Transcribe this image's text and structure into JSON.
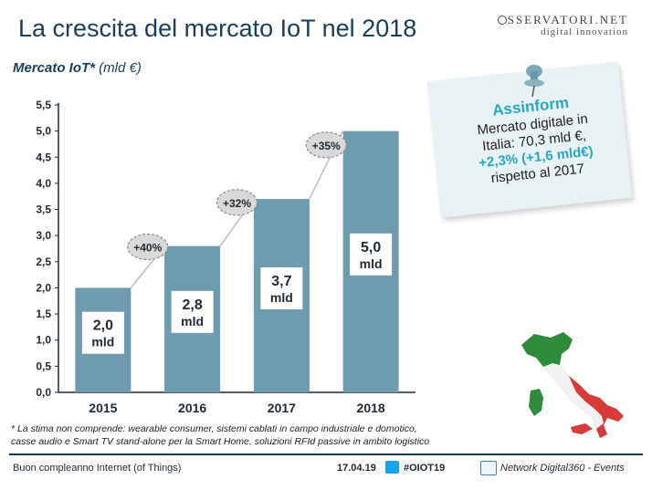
{
  "header": {
    "title": "La crescita del mercato IoT nel 2018",
    "logo_line1": "SSERVATORI.NET",
    "logo_line2": "digital innovation"
  },
  "subtitle": {
    "bold": "Mercato IoT*",
    "unit": " (mld €)"
  },
  "chart_data": {
    "type": "bar",
    "categories": [
      "2015",
      "2016",
      "2017",
      "2018"
    ],
    "values": [
      2.0,
      2.8,
      3.7,
      5.0
    ],
    "value_labels": [
      "2,0\nmld",
      "2,8\nmld",
      "3,7\nmld",
      "5,0\nmld"
    ],
    "growth_labels": [
      "+40%",
      "+32%",
      "+35%"
    ],
    "title": "",
    "xlabel": "",
    "ylabel": "",
    "ylim": [
      0,
      5.5
    ],
    "yticks": [
      "0,0",
      "0,5",
      "1,0",
      "1,5",
      "2,0",
      "2,5",
      "3,0",
      "3,5",
      "4,0",
      "4,5",
      "5,0",
      "5,5"
    ],
    "grid": false,
    "bar_color": "#6f9bae"
  },
  "note": {
    "title": "Assinform",
    "line1": "Mercato digitale in",
    "line2": "Italia: 70,3 mld €,",
    "growth": "+2,3% (+1,6 mld€)",
    "line4": "rispetto al 2017",
    "accent_color": "#2aa6c4"
  },
  "footnote": {
    "line1": "* La stima non comprende: wearable consumer, sistemi cablati in campo industriale e domotico,",
    "line2": "casse audio e Smart TV stand-alone per la Smart Home, soluzioni RFId passive in ambito logistico"
  },
  "footer": {
    "left": "Buon compleanno Internet (of Things)",
    "date": "17.04.19",
    "hashtag": "#OIOT19",
    "right": "Network Digital360 - Events"
  }
}
